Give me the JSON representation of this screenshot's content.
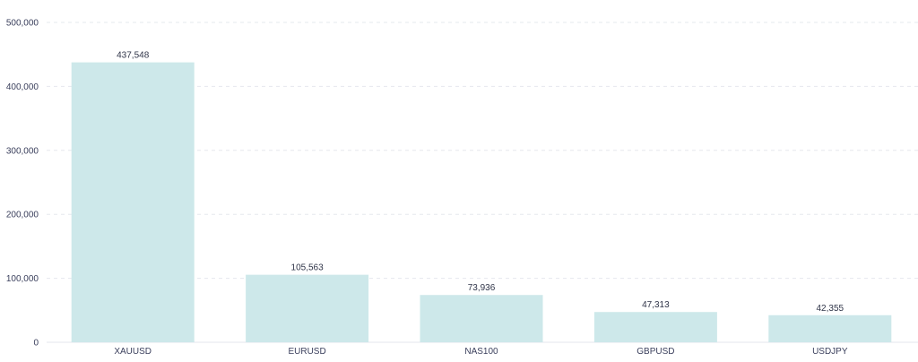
{
  "chart_data": {
    "type": "bar",
    "categories": [
      "XAUUSD",
      "EURUSD",
      "NAS100",
      "GBPUSD",
      "USDJPY"
    ],
    "values": [
      437548,
      105563,
      73936,
      47313,
      42355
    ],
    "value_labels": [
      "437,548",
      "105,563",
      "73,936",
      "47,313",
      "42,355"
    ],
    "title": "",
    "xlabel": "",
    "ylabel": "",
    "ylim": [
      0,
      500000
    ],
    "yticks": [
      0,
      100000,
      200000,
      300000,
      400000,
      500000
    ],
    "ytick_labels": [
      "0",
      "100,000",
      "200,000",
      "300,000",
      "400,000",
      "500,000"
    ],
    "grid": true,
    "legend": "none",
    "bar_color": "#cde8ea",
    "text_color": "#3a3f5c"
  }
}
